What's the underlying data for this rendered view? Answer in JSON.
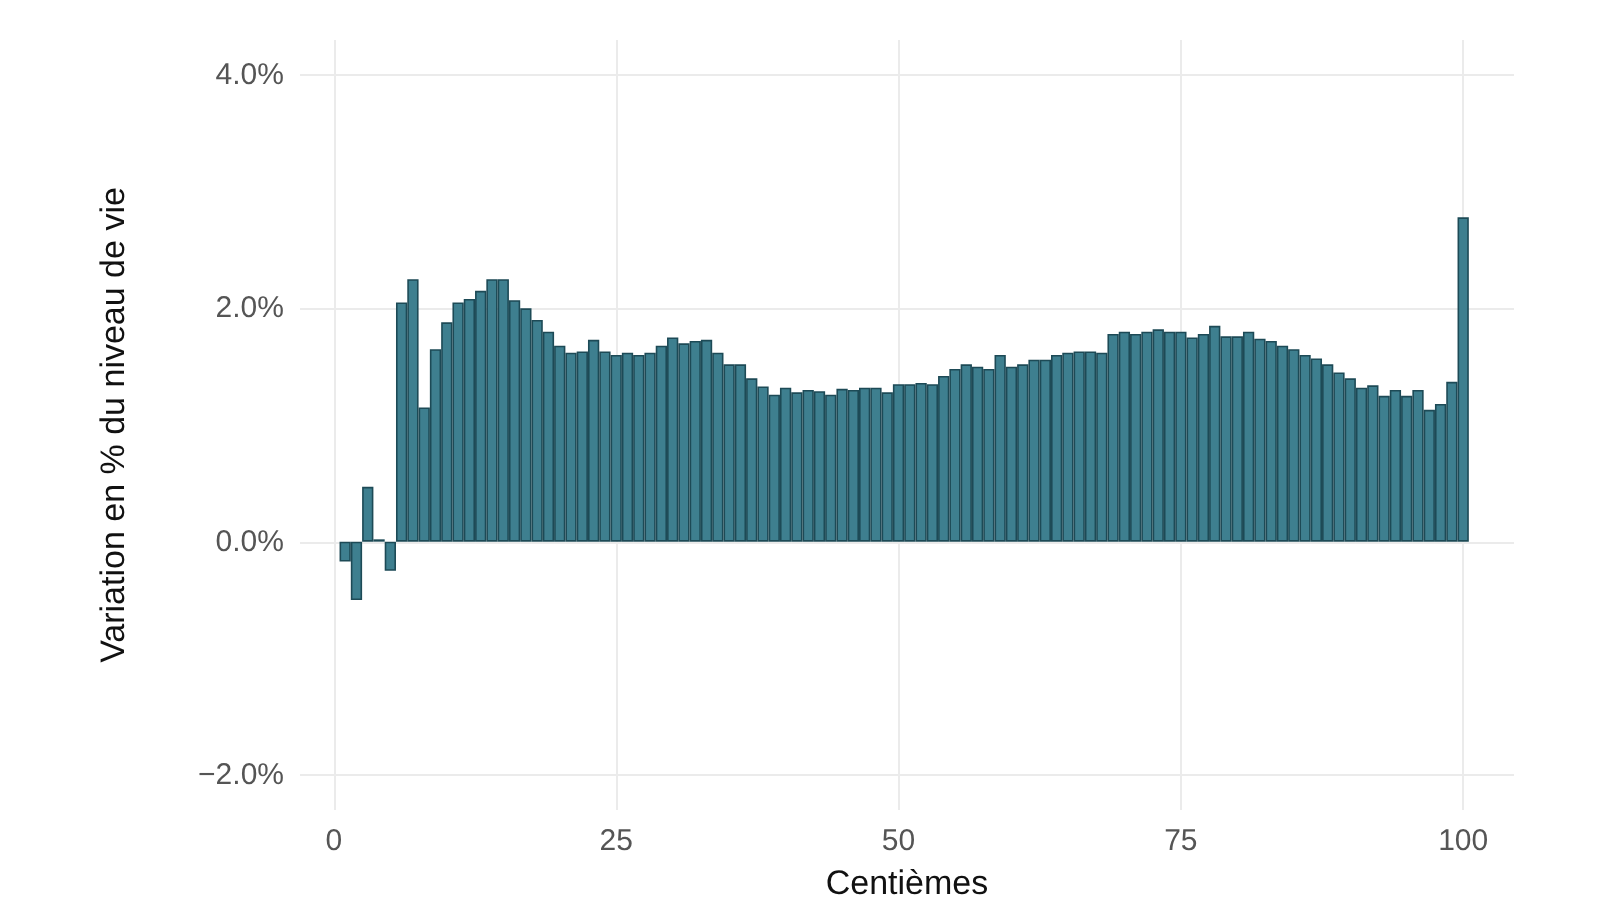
{
  "chart_data": {
    "type": "bar",
    "xlabel": "Centièmes",
    "ylabel": "Variation en % du niveau de vie",
    "x": [
      1,
      2,
      3,
      4,
      5,
      6,
      7,
      8,
      9,
      10,
      11,
      12,
      13,
      14,
      15,
      16,
      17,
      18,
      19,
      20,
      21,
      22,
      23,
      24,
      25,
      26,
      27,
      28,
      29,
      30,
      31,
      32,
      33,
      34,
      35,
      36,
      37,
      38,
      39,
      40,
      41,
      42,
      43,
      44,
      45,
      46,
      47,
      48,
      49,
      50,
      51,
      52,
      53,
      54,
      55,
      56,
      57,
      58,
      59,
      60,
      61,
      62,
      63,
      64,
      65,
      66,
      67,
      68,
      69,
      70,
      71,
      72,
      73,
      74,
      75,
      76,
      77,
      78,
      79,
      80,
      81,
      82,
      83,
      84,
      85,
      86,
      87,
      88,
      89,
      90,
      91,
      92,
      93,
      94,
      95,
      96,
      97,
      98,
      99,
      100
    ],
    "values": [
      -0.17,
      -0.5,
      0.47,
      0.02,
      -0.25,
      2.05,
      2.25,
      1.15,
      1.65,
      1.88,
      2.05,
      2.08,
      2.15,
      2.25,
      2.25,
      2.07,
      2.0,
      1.9,
      1.8,
      1.68,
      1.62,
      1.63,
      1.73,
      1.63,
      1.6,
      1.62,
      1.6,
      1.62,
      1.68,
      1.75,
      1.7,
      1.72,
      1.73,
      1.62,
      1.52,
      1.52,
      1.4,
      1.33,
      1.26,
      1.32,
      1.28,
      1.3,
      1.29,
      1.26,
      1.31,
      1.3,
      1.32,
      1.32,
      1.28,
      1.35,
      1.35,
      1.36,
      1.35,
      1.42,
      1.48,
      1.52,
      1.5,
      1.48,
      1.6,
      1.5,
      1.52,
      1.56,
      1.56,
      1.6,
      1.62,
      1.63,
      1.63,
      1.62,
      1.78,
      1.8,
      1.78,
      1.8,
      1.82,
      1.8,
      1.8,
      1.75,
      1.78,
      1.85,
      1.76,
      1.76,
      1.8,
      1.74,
      1.72,
      1.68,
      1.65,
      1.6,
      1.57,
      1.52,
      1.45,
      1.4,
      1.32,
      1.34,
      1.25,
      1.3,
      1.25,
      1.3,
      1.13,
      1.18,
      1.37,
      2.78
    ],
    "color": "#3e7f8f",
    "xlim": [
      -3,
      104.5
    ],
    "xticks": [
      0,
      25,
      50,
      75,
      100
    ],
    "ylim": [
      -2.3,
      4.3
    ],
    "yticks": [
      {
        "value": -2,
        "label": "−2.0%"
      },
      {
        "value": 0,
        "label": "0.0%"
      },
      {
        "value": 2,
        "label": "2.0%"
      },
      {
        "value": 4,
        "label": "4.0%"
      }
    ],
    "grid": true
  }
}
